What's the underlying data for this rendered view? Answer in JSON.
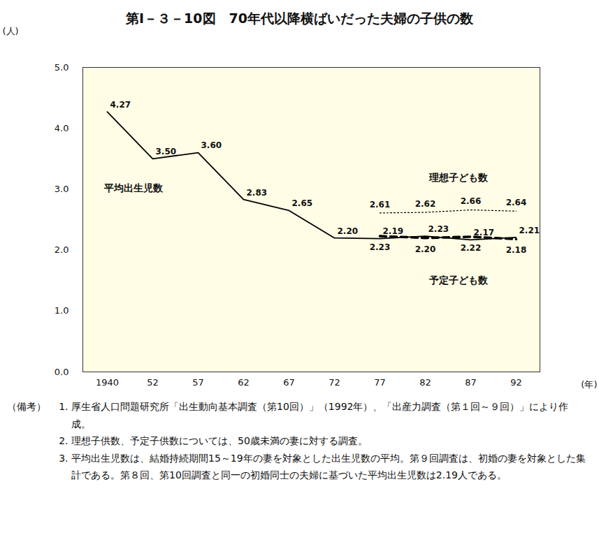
{
  "chart_data": {
    "type": "line",
    "title": "第Ⅰ－３－10図　70年代以降横ばいだった夫婦の子供の数",
    "x_label": "(年)",
    "y_label": "(人)",
    "categories": [
      "1940",
      "52",
      "57",
      "62",
      "67",
      "72",
      "77",
      "82",
      "87",
      "92"
    ],
    "ylim": [
      0,
      5
    ],
    "yticks": [
      0,
      1,
      2,
      3,
      4,
      5
    ],
    "data_labels": true,
    "series": [
      {
        "name": "平均出生児数",
        "color": "#000000",
        "line_style": "solid",
        "values": [
          4.27,
          3.5,
          3.6,
          2.83,
          2.65,
          2.2,
          2.19,
          2.23,
          2.17,
          2.21
        ],
        "value_labels": [
          "4.27",
          "3.50",
          "3.60",
          "2.83",
          "2.65",
          "2.20",
          "2.19",
          "2.23",
          "2.17",
          "2.21"
        ]
      },
      {
        "name": "理想子ども数",
        "color": "#000000",
        "line_style": "dotted",
        "values": [
          null,
          null,
          null,
          null,
          null,
          null,
          2.61,
          2.62,
          2.66,
          2.64
        ],
        "value_labels": [
          null,
          null,
          null,
          null,
          null,
          null,
          "2.61",
          "2.62",
          "2.66",
          "2.64"
        ]
      },
      {
        "name": "予定子ども数",
        "color": "#000000",
        "line_style": "dashed",
        "values": [
          null,
          null,
          null,
          null,
          null,
          null,
          2.23,
          2.2,
          2.22,
          2.18
        ],
        "value_labels": [
          null,
          null,
          null,
          null,
          null,
          null,
          "2.23",
          "2.20",
          "2.22",
          "2.18"
        ]
      }
    ],
    "notes": {
      "label": "（備考）",
      "items": [
        "厚生省人口問題研究所「出生動向基本調査（第10回）」（1992年）、「出産力調査（第１回～９回）」により作成。",
        "理想子供数、予定子供数については、50歳未満の妻に対する調査。",
        "平均出生児数は、結婚持続期間15～19年の妻を対象とした出生児数の平均。第９回調査は、初婚の妻を対象とした集計である。第８回、第10回調査と同一の初婚同士の夫婦に基づいた平均出生児数は2.19人である。"
      ]
    }
  }
}
